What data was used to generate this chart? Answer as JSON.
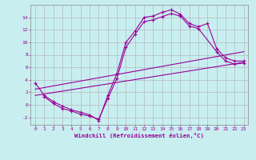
{
  "bg_color": "#c8eef0",
  "line_color": "#990099",
  "grid_color": "#b0b0b0",
  "xlabel": "Windchill (Refroidissement éolien,°C)",
  "xlabel_color": "#990099",
  "tick_color": "#990099",
  "ylim": [
    -3.2,
    16.0
  ],
  "xlim": [
    -0.5,
    23.5
  ],
  "yticks": [
    -2,
    0,
    2,
    4,
    6,
    8,
    10,
    12,
    14
  ],
  "xticks": [
    0,
    1,
    2,
    3,
    4,
    5,
    6,
    7,
    8,
    9,
    10,
    11,
    12,
    13,
    14,
    15,
    16,
    17,
    18,
    19,
    20,
    21,
    22,
    23
  ],
  "line1_x": [
    0,
    1,
    2,
    3,
    4,
    5,
    6,
    7,
    8,
    9,
    10,
    11,
    12,
    13,
    14,
    15,
    16,
    17,
    18,
    19,
    20,
    21,
    22,
    23
  ],
  "line1_y": [
    3.5,
    1.5,
    0.5,
    -0.2,
    -0.8,
    -1.2,
    -1.6,
    -2.5,
    1.5,
    5.0,
    10.0,
    11.8,
    14.0,
    14.2,
    14.8,
    15.2,
    14.5,
    13.0,
    12.5,
    13.0,
    9.0,
    7.5,
    7.0,
    7.0
  ],
  "line2_x": [
    1,
    2,
    3,
    4,
    5,
    6,
    7,
    8,
    9,
    10,
    11,
    12,
    13,
    14,
    15,
    16,
    17,
    18,
    20,
    21,
    22,
    23
  ],
  "line2_y": [
    1.3,
    0.2,
    -0.6,
    -1.0,
    -1.5,
    -1.8,
    -2.3,
    1.0,
    4.2,
    9.2,
    11.3,
    13.3,
    13.6,
    14.1,
    14.6,
    14.2,
    12.6,
    12.2,
    8.5,
    7.0,
    6.5,
    6.7
  ],
  "line3_x": [
    0,
    23
  ],
  "line3_y": [
    2.5,
    8.5
  ],
  "line4_x": [
    0,
    23
  ],
  "line4_y": [
    1.5,
    6.8
  ]
}
